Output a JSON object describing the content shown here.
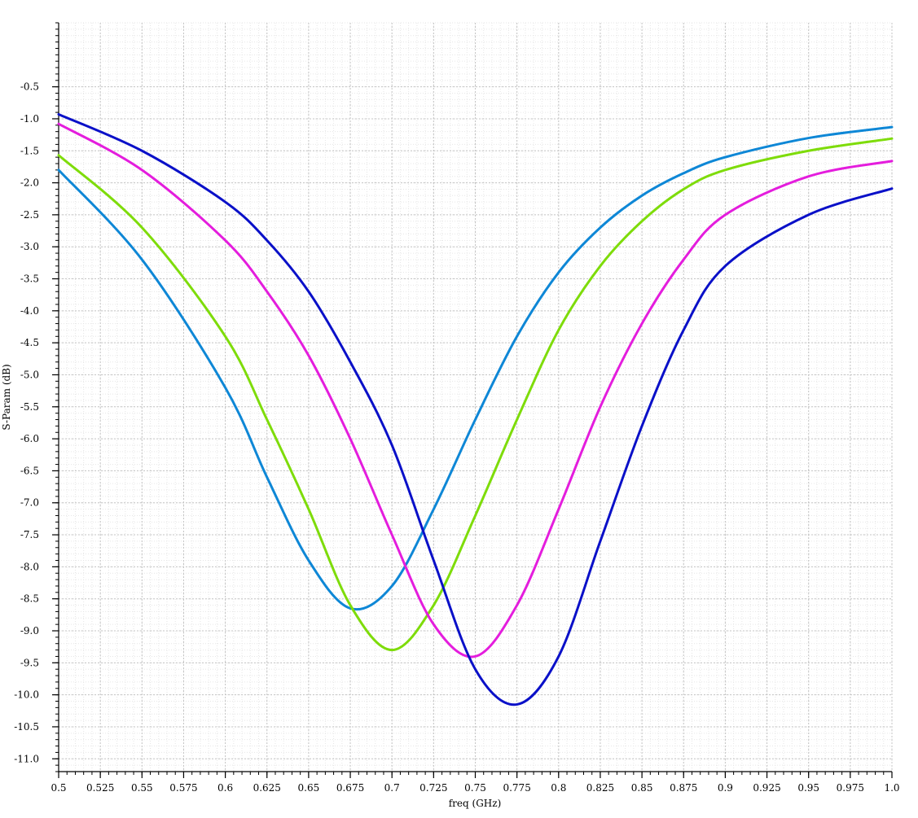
{
  "chart_data": {
    "type": "line",
    "title": "",
    "xlabel": "freq (GHz)",
    "ylabel": "S-Param (dB)",
    "xlim": [
      0.5,
      1.0
    ],
    "ylim": [
      -11.2,
      0.5
    ],
    "grid": true,
    "legend": "none",
    "x_ticks": [
      "0.5",
      "0.525",
      "0.55",
      "0.575",
      "0.6",
      "0.625",
      "0.65",
      "0.675",
      "0.7",
      "0.725",
      "0.75",
      "0.775",
      "0.8",
      "0.825",
      "0.85",
      "0.875",
      "0.9",
      "0.925",
      "0.95",
      "0.975",
      "1.0"
    ],
    "y_ticks": [
      "-0.5",
      "-1.0",
      "-1.5",
      "-2.0",
      "-2.5",
      "-3.0",
      "-3.5",
      "-4.0",
      "-4.5",
      "-5.0",
      "-5.5",
      "-6.0",
      "-6.5",
      "-7.0",
      "-7.5",
      "-8.0",
      "-8.5",
      "-9.0",
      "-9.5",
      "-10.0",
      "-10.5",
      "-11.0"
    ],
    "x": [
      0.5,
      0.55,
      0.6,
      0.625,
      0.65,
      0.675,
      0.7,
      0.725,
      0.75,
      0.775,
      0.8,
      0.825,
      0.85,
      0.875,
      0.9,
      0.95,
      1.0
    ],
    "series": [
      {
        "color": "#0e87d6",
        "values": [
          -1.8,
          -3.2,
          -5.2,
          -6.6,
          -7.9,
          -8.65,
          -8.3,
          -7.1,
          -5.7,
          -4.4,
          -3.4,
          -2.7,
          -2.2,
          -1.85,
          -1.6,
          -1.3,
          -1.13
        ]
      },
      {
        "color": "#7edc0a",
        "values": [
          -1.57,
          -2.7,
          -4.4,
          -5.7,
          -7.1,
          -8.6,
          -9.3,
          -8.6,
          -7.2,
          -5.7,
          -4.3,
          -3.3,
          -2.6,
          -2.1,
          -1.8,
          -1.5,
          -1.31
        ]
      },
      {
        "color": "#e41ddd",
        "values": [
          -1.08,
          -1.8,
          -2.9,
          -3.7,
          -4.7,
          -6.0,
          -7.5,
          -8.9,
          -9.4,
          -8.6,
          -7.1,
          -5.5,
          -4.2,
          -3.2,
          -2.5,
          -1.9,
          -1.66
        ]
      },
      {
        "color": "#0a10c8",
        "values": [
          -0.93,
          -1.5,
          -2.3,
          -2.9,
          -3.7,
          -4.8,
          -6.1,
          -7.9,
          -9.6,
          -10.15,
          -9.4,
          -7.6,
          -5.8,
          -4.3,
          -3.3,
          -2.5,
          -2.09
        ]
      }
    ]
  }
}
